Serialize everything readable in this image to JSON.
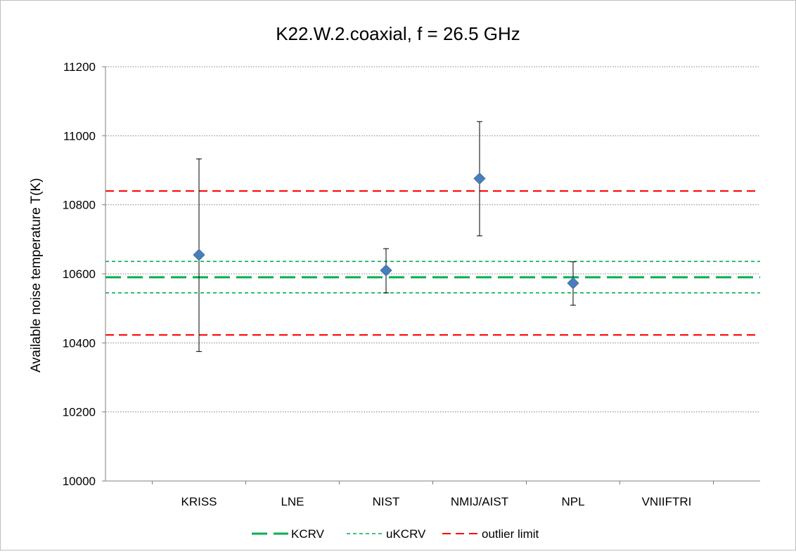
{
  "chart_data": {
    "type": "scatter",
    "title": "K22.W.2.coaxial, f = 26.5 GHz",
    "xlabel": "",
    "ylabel": "Available noise temperature  T(K)",
    "categories": [
      "KRISS",
      "LNE",
      "NIST",
      "NMIJ/AIST",
      "NPL",
      "VNIIFTRI"
    ],
    "ylim": [
      10000,
      11200
    ],
    "yticks": [
      10000,
      10200,
      10400,
      10600,
      10800,
      11000,
      11200
    ],
    "grid": "horizontal-dotted",
    "points": [
      {
        "category": "KRISS",
        "value": 10655,
        "low": 10375,
        "high": 10933
      },
      {
        "category": "NIST",
        "value": 10610,
        "low": 10545,
        "high": 10673
      },
      {
        "category": "NMIJ/AIST",
        "value": 10876,
        "low": 10710,
        "high": 11041
      },
      {
        "category": "NPL",
        "value": 10573,
        "low": 10509,
        "high": 10635
      }
    ],
    "reference_lines": [
      {
        "name": "KCRV",
        "values": [
          10590
        ],
        "style": "long-dash",
        "color": "#00b050"
      },
      {
        "name": "uKCRV",
        "values": [
          10636,
          10545
        ],
        "style": "short-dash",
        "color": "#00b050"
      },
      {
        "name": "outlier limit",
        "values": [
          10840,
          10423
        ],
        "style": "dash",
        "color": "#ff0000"
      }
    ],
    "marker_color": "#4a7ebb",
    "legend_position": "bottom"
  }
}
